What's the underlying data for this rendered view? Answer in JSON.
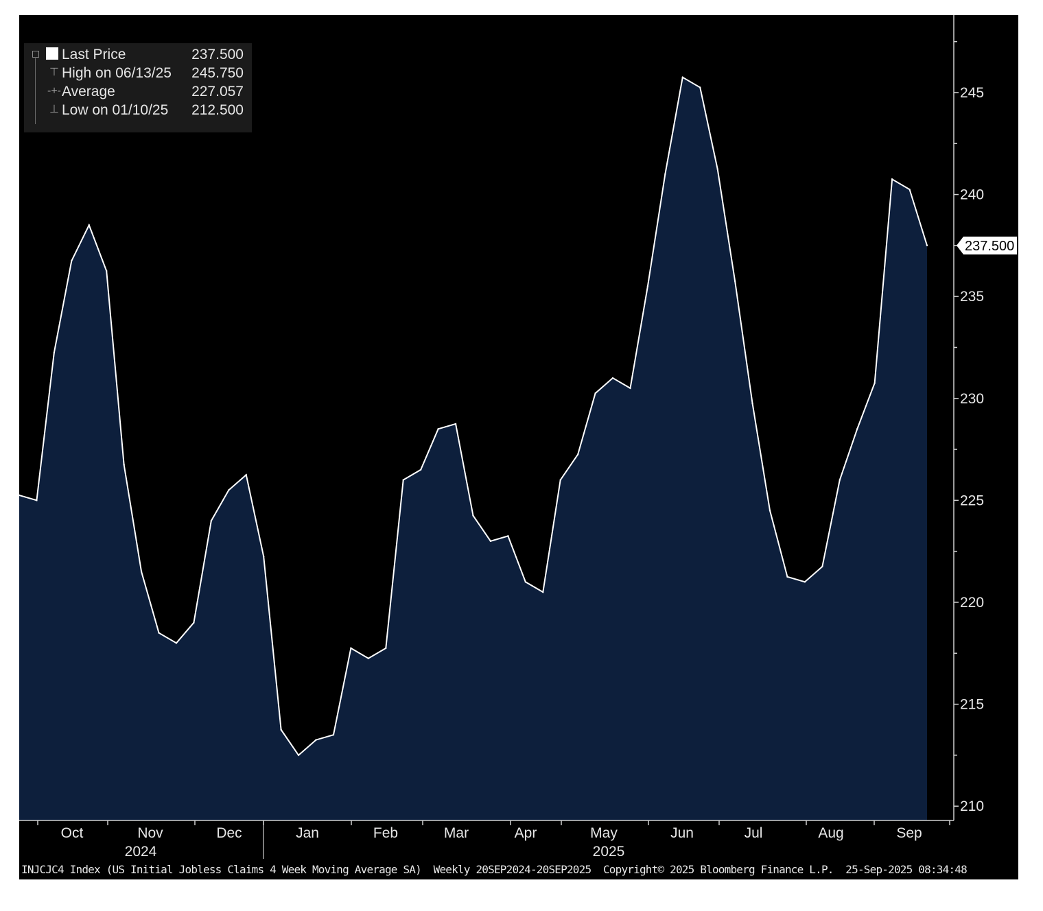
{
  "legend": {
    "rows": [
      {
        "label": "Last Price",
        "value": "237.500"
      },
      {
        "label": "High on 06/13/25",
        "value": "245.750"
      },
      {
        "label": "Average",
        "value": "227.057"
      },
      {
        "label": "Low on 01/10/25",
        "value": "212.500"
      }
    ]
  },
  "last_value_tag": "237.500",
  "footer": {
    "ticker": "INJCJC4 Index (US Initial Jobless Claims 4 Week Moving Average SA)",
    "frequency": "Weekly 20SEP2024-20SEP2025",
    "copyright": "Copyright© 2025 Bloomberg Finance L.P.",
    "timestamp": "25-Sep-2025 08:34:48"
  },
  "colors": {
    "background": "#000000",
    "area_fill": "#0d1f3c",
    "line": "#ffffff",
    "axis": "#cfcfcf",
    "text": "#e6e6e6"
  },
  "chart_data": {
    "type": "area",
    "ylim": [
      209.3,
      248.8
    ],
    "y_ticks": [
      210,
      215,
      220,
      225,
      230,
      235,
      240,
      245
    ],
    "x_month_labels": [
      "Oct",
      "Nov",
      "Dec",
      "Jan",
      "Feb",
      "Mar",
      "Apr",
      "May",
      "Jun",
      "Jul",
      "Aug",
      "Sep"
    ],
    "x_year_labels": [
      "2024",
      "2025"
    ],
    "grid": false,
    "legend_position": "top-left",
    "series": [
      {
        "name": "Last Price",
        "x": [
          "2024-09-20",
          "2024-09-27",
          "2024-10-04",
          "2024-10-11",
          "2024-10-18",
          "2024-10-25",
          "2024-11-01",
          "2024-11-08",
          "2024-11-15",
          "2024-11-22",
          "2024-11-29",
          "2024-12-06",
          "2024-12-13",
          "2024-12-20",
          "2024-12-27",
          "2025-01-03",
          "2025-01-10",
          "2025-01-17",
          "2025-01-24",
          "2025-01-31",
          "2025-02-07",
          "2025-02-14",
          "2025-02-21",
          "2025-02-28",
          "2025-03-07",
          "2025-03-14",
          "2025-03-21",
          "2025-03-28",
          "2025-04-04",
          "2025-04-11",
          "2025-04-18",
          "2025-04-25",
          "2025-05-02",
          "2025-05-09",
          "2025-05-16",
          "2025-05-23",
          "2025-05-30",
          "2025-06-06",
          "2025-06-13",
          "2025-06-20",
          "2025-06-27",
          "2025-07-04",
          "2025-07-11",
          "2025-07-18",
          "2025-07-25",
          "2025-08-01",
          "2025-08-08",
          "2025-08-15",
          "2025-08-22",
          "2025-08-29",
          "2025-09-05",
          "2025-09-12",
          "2025-09-20"
        ],
        "values": [
          225.25,
          225.0,
          232.25,
          236.75,
          238.5,
          236.25,
          226.75,
          221.5,
          218.5,
          218.0,
          219.0,
          224.0,
          225.5,
          226.25,
          222.25,
          213.75,
          212.5,
          213.25,
          213.5,
          217.75,
          217.25,
          217.75,
          226.0,
          226.5,
          228.5,
          228.75,
          224.25,
          223.0,
          223.25,
          221.0,
          220.5,
          226.0,
          227.25,
          230.25,
          231.0,
          230.5,
          235.5,
          241.0,
          245.75,
          245.25,
          241.25,
          235.75,
          229.75,
          224.5,
          221.25,
          221.0,
          221.75,
          226.0,
          228.5,
          230.75,
          240.75,
          240.25,
          237.5
        ]
      }
    ]
  }
}
